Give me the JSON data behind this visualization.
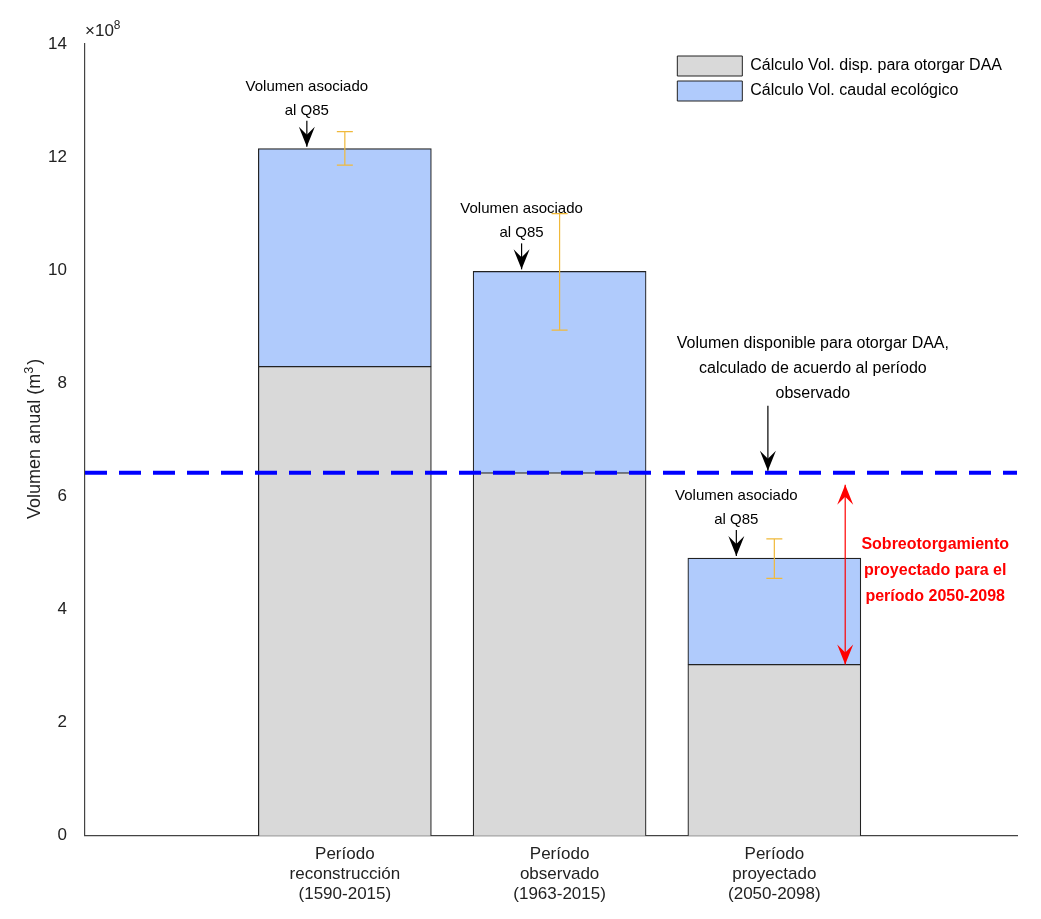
{
  "chart_data": {
    "type": "bar",
    "stacked": true,
    "ylabel": "Volumen anual (m$^{3}$)",
    "categories": [
      null,
      "Período reconstrucción (1590-2015)",
      "Período observado (1963-2015)",
      "Período proyectado (2050-2098)"
    ],
    "series": [
      {
        "name": "Cálculo Vol. disp. para otorgar DAA",
        "color": "#d9d9d9",
        "values": [
          null,
          8.3,
          6.42,
          3.03
        ]
      },
      {
        "name": "Cálculo Vol. caudal ecológico",
        "color": "#b0cbfc",
        "values": [
          null,
          3.85,
          3.56,
          1.88
        ],
        "errors": [
          null,
          [
            11.86,
            12.45
          ],
          [
            8.94,
            11.0
          ],
          [
            4.55,
            5.25
          ]
        ]
      }
    ],
    "ylim": [
      0,
      14
    ],
    "yticks": [
      0,
      2,
      4,
      6,
      8,
      10,
      12,
      14
    ],
    "ref_lines": [
      {
        "axis": "y",
        "value": 6.42,
        "label": "Volumen disponible para otorgar DAA, calculado de acuerdo al período observado",
        "color": "#0000ff",
        "line_style": "dashed"
      }
    ],
    "annotations": [
      "×10$^{8}$",
      {
        "text": "Volumen asociado al Q85",
        "x": "Período reconstrucción (1590-2015)",
        "y": 12.15
      },
      {
        "text": "Volumen asociado al Q85",
        "x": "Período observado (1963-2015)",
        "y": 9.98
      },
      {
        "text": "Volumen asociado al Q85",
        "x": "Período proyectado (2050-2098)",
        "y": 4.91
      },
      "Sobreotorgamiento proyectado para el período 2050-2098"
    ],
    "legend": "top right",
    "grid": false
  }
}
